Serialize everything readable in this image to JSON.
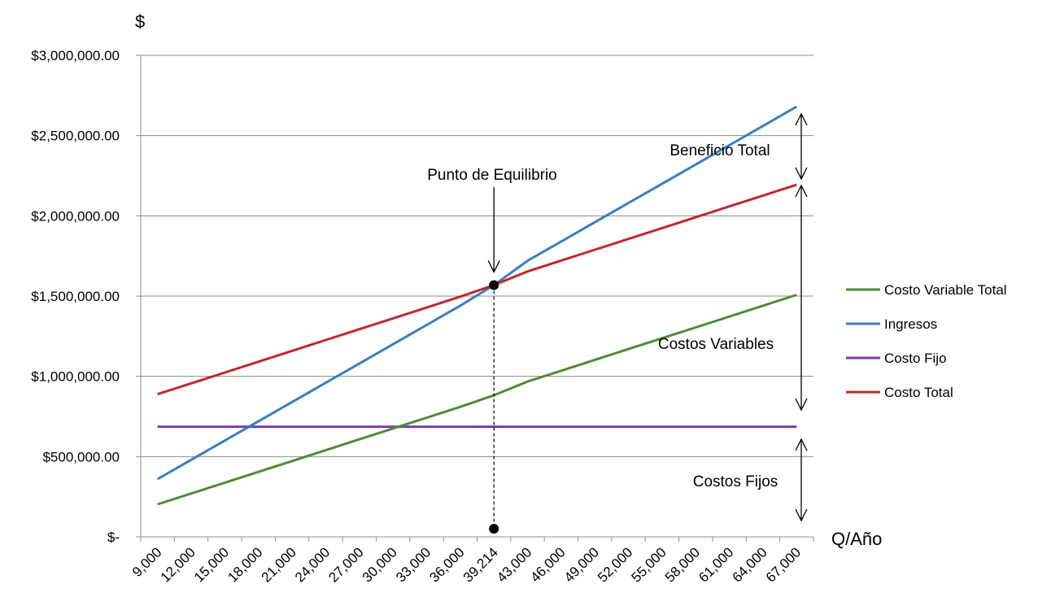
{
  "chart_data": {
    "type": "line",
    "y_axis_title": "$",
    "x_axis_title": "Q/Año",
    "categories": [
      "9,000",
      "12,000",
      "15,000",
      "18,000",
      "21,000",
      "24,000",
      "27,000",
      "30,000",
      "33,000",
      "36,000",
      "39,214",
      "43,000",
      "46,000",
      "49,000",
      "52,000",
      "55,000",
      "58,000",
      "61,000",
      "64,000",
      "67,000"
    ],
    "y_tick_labels": [
      "$-",
      "$500,000.00",
      "$1,000,000.00",
      "$1,500,000.00",
      "$2,000,000.00",
      "$2,500,000.00",
      "$3,000,000.00"
    ],
    "ylim": [
      0,
      3000000
    ],
    "grid": true,
    "legend_position": "right",
    "series": [
      {
        "name": "Costo Variable Total",
        "color": "#4f8a3a",
        "values": [
          202500,
          270000,
          337500,
          405000,
          472500,
          540000,
          607500,
          675000,
          742500,
          810000,
          882315,
          967500,
          1035000,
          1102500,
          1170000,
          1237500,
          1305000,
          1372500,
          1440000,
          1507500
        ]
      },
      {
        "name": "Ingresos",
        "color": "#3b7ebf",
        "values": [
          360000,
          480000,
          600000,
          720000,
          840000,
          960000,
          1080000,
          1200000,
          1320000,
          1440000,
          1568560,
          1720000,
          1840000,
          1960000,
          2080000,
          2200000,
          2320000,
          2440000,
          2560000,
          2680000
        ]
      },
      {
        "name": "Costo Fijo",
        "color": "#7a3fa5",
        "values": [
          686245,
          686245,
          686245,
          686245,
          686245,
          686245,
          686245,
          686245,
          686245,
          686245,
          686245,
          686245,
          686245,
          686245,
          686245,
          686245,
          686245,
          686245,
          686245,
          686245
        ]
      },
      {
        "name": "Costo Total",
        "color": "#c0282d",
        "values": [
          888745,
          956245,
          1023745,
          1091245,
          1158745,
          1226245,
          1293745,
          1361245,
          1428745,
          1496245,
          1568560,
          1653745,
          1721245,
          1788745,
          1856245,
          1923745,
          1991245,
          2058745,
          2126245,
          2193745
        ]
      }
    ],
    "annotations": {
      "break_even": "Punto de Equilibrio",
      "total_profit": "Beneficio Total",
      "variable_costs": "Costos Variables",
      "fixed_costs": "Costos Fijos"
    },
    "break_even_point": {
      "x": "39,214",
      "y": 1568560
    }
  }
}
